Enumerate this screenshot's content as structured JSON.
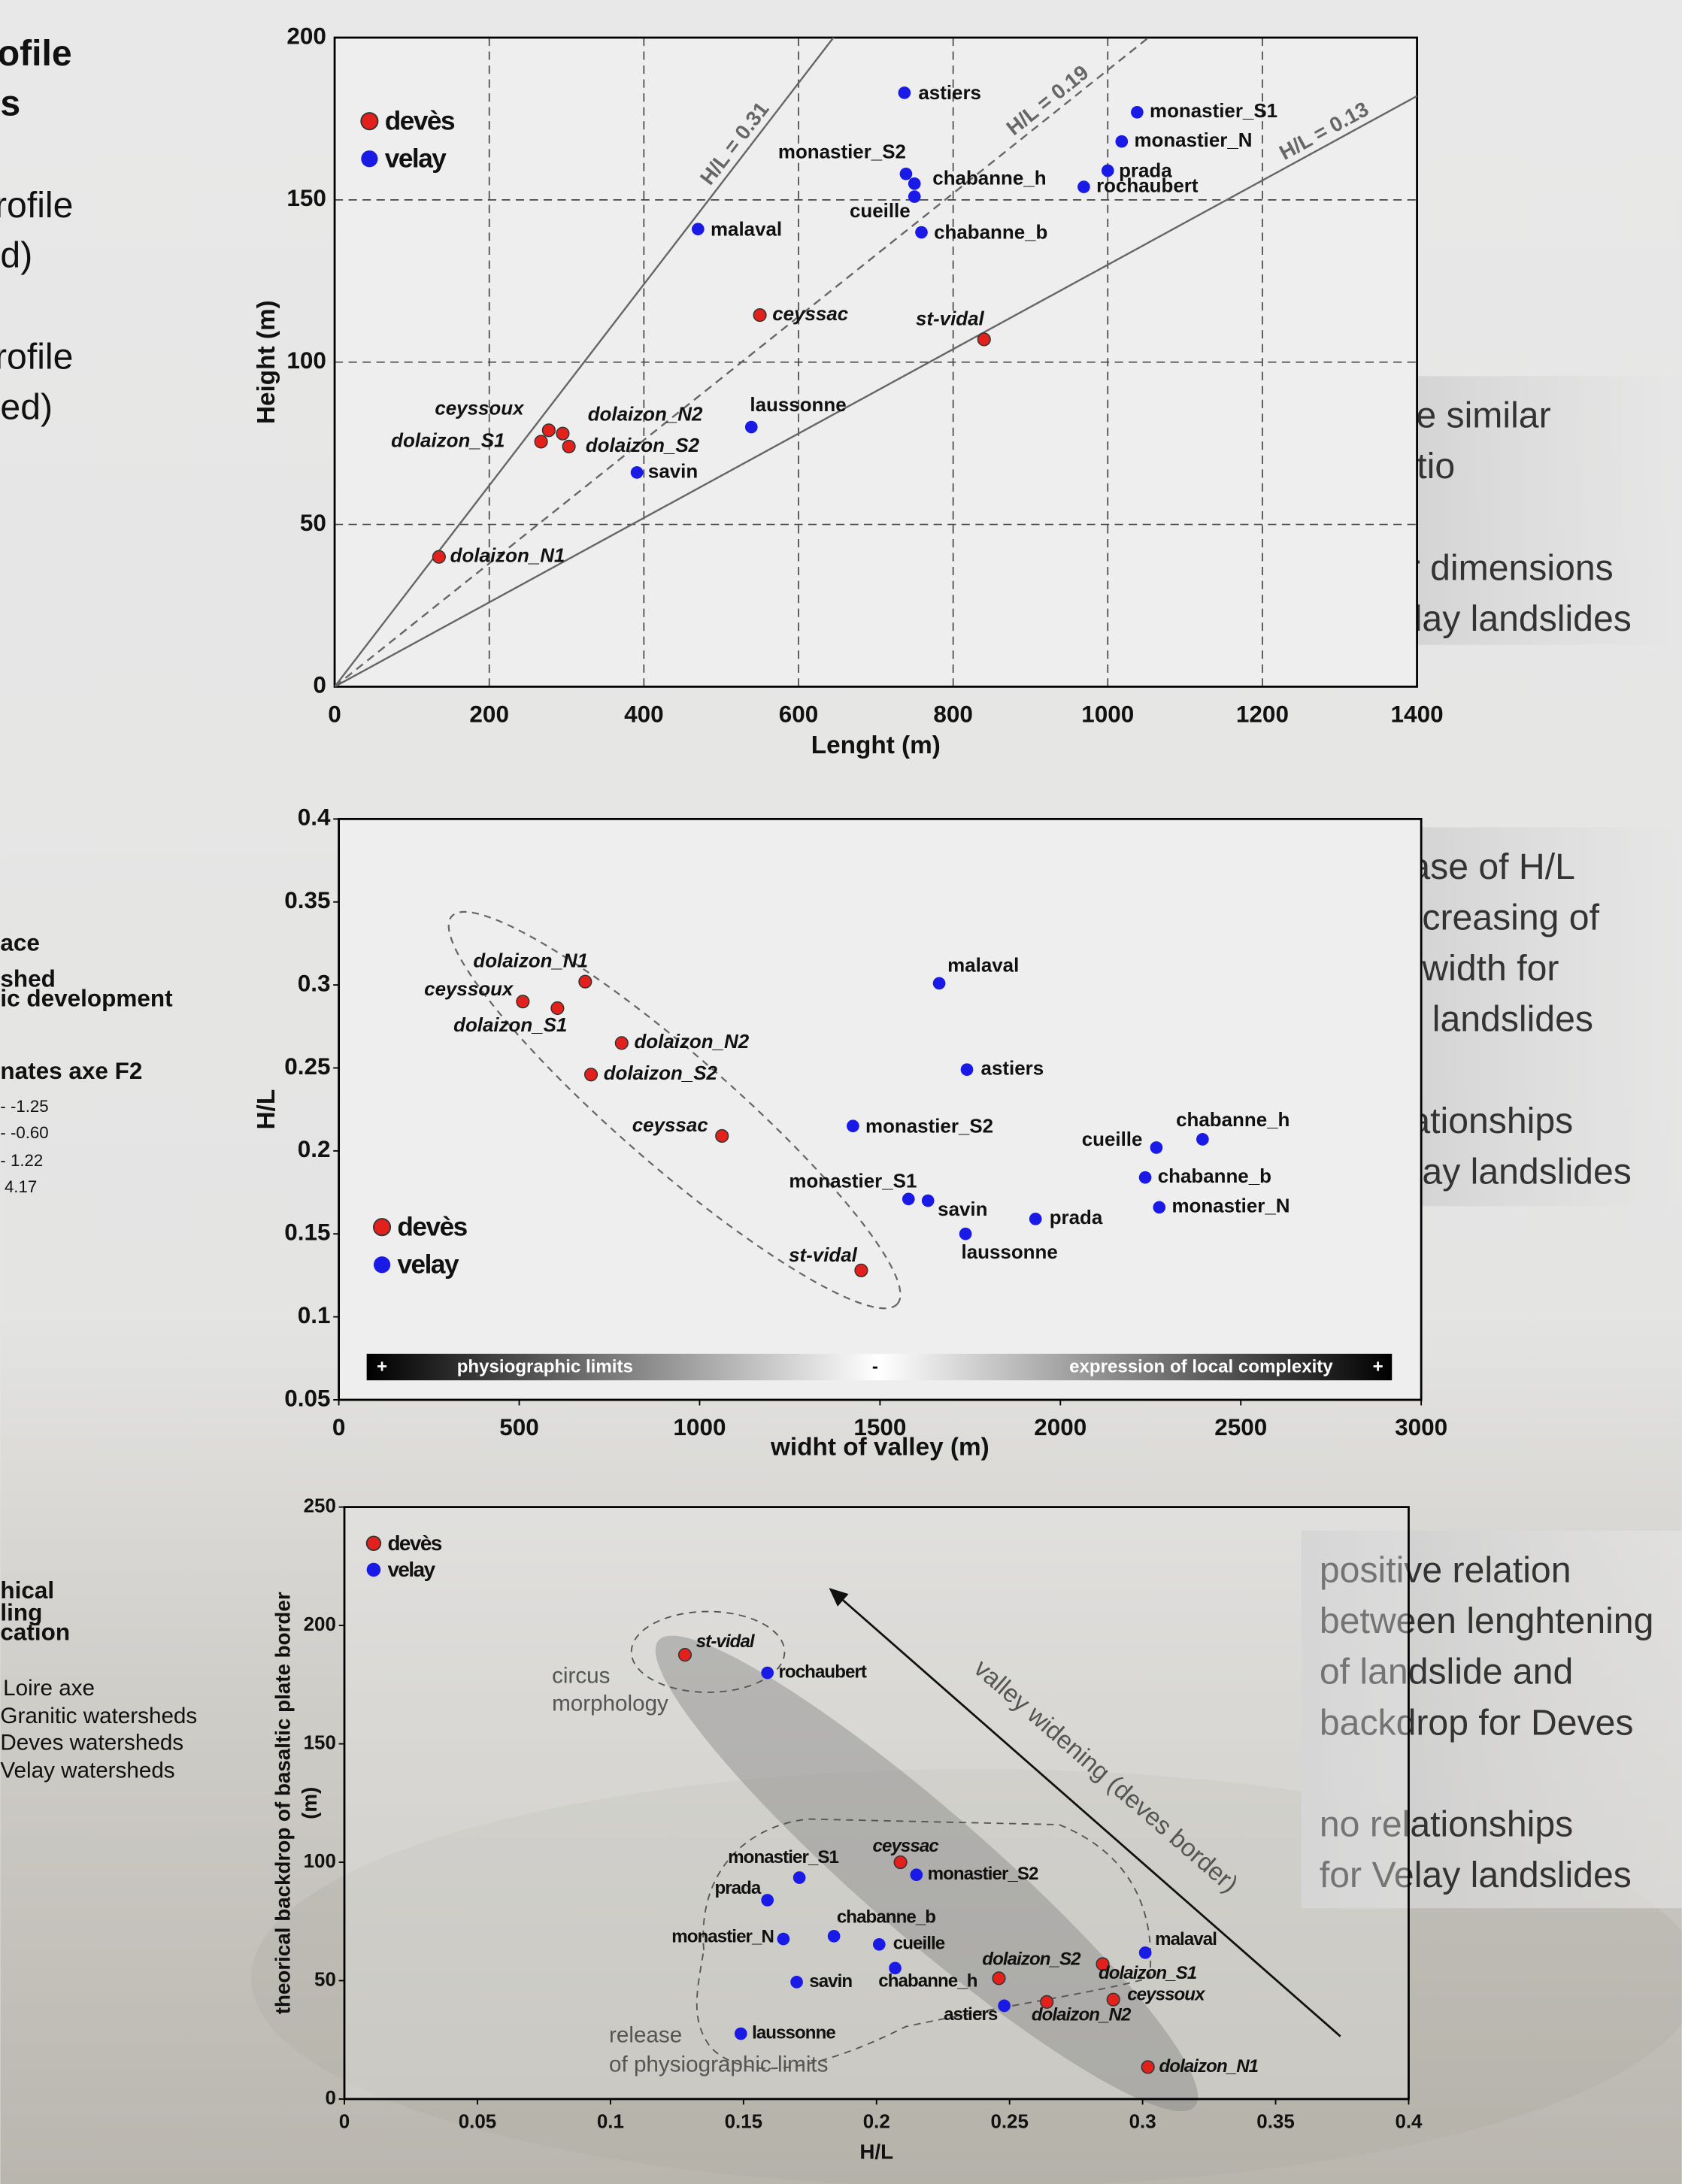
{
  "side_text": [
    "ofile",
    "s",
    "rofile",
    "d)",
    "rofile",
    "ed)",
    "ace",
    "shed",
    "ic development",
    "nates axe F2",
    "- -1.25",
    "- -0.60",
    "- 1.22",
    "4.17",
    "hical",
    "ling",
    "cation",
    "Loire axe",
    "Granitic watersheds",
    "Deves watersheds",
    "Velay watersheds"
  ],
  "notes": [
    [
      [
        "relative similar",
        "H/L ratio"
      ],
      [
        "higher dimensions",
        "for Velay landslides"
      ]
    ],
    [
      [
        "decrease of H/L",
        "with increasing of",
        "valley width for",
        "Deves landslides"
      ],
      [
        "no relationships",
        "for Velay landslides"
      ]
    ],
    [
      [
        "positive relation",
        "between lenghtening",
        "of landslide and",
        "backdrop for Deves"
      ],
      [
        "no relationships",
        "for Velay landslides"
      ]
    ]
  ],
  "chart_data": [
    {
      "type": "scatter",
      "xlabel": "Lenght (m)",
      "ylabel": "Height (m)",
      "xlim": [
        0,
        1400
      ],
      "ylim": [
        0,
        200
      ],
      "xticks": [
        0,
        200,
        400,
        600,
        800,
        1000,
        1200,
        1400
      ],
      "yticks": [
        0,
        50,
        100,
        150,
        200
      ],
      "grid": true,
      "legend": "upper left",
      "ratio_lines": [
        {
          "label": "H/L = 0.31",
          "value": 0.31,
          "dashed": false
        },
        {
          "label": "H/L = 0.19",
          "value": 0.19,
          "dashed": true
        },
        {
          "label": "H/L = 0.13",
          "value": 0.13,
          "dashed": false
        }
      ],
      "series": [
        {
          "name": "devès",
          "color": "#e3211c",
          "labels": [
            "dolaizon_N1",
            "dolaizon_S1",
            "ceyssoux",
            "dolaizon_N2",
            "dolaizon_S2",
            "ceyssac",
            "st-vidal"
          ],
          "x": [
            135,
            267,
            277,
            295,
            303,
            550,
            840
          ],
          "values": [
            40,
            75.5,
            79,
            78,
            74,
            114.5,
            107
          ]
        },
        {
          "name": "velay",
          "color": "#1a1ae6",
          "labels": [
            "astiers",
            "monastier_S1",
            "monastier_N",
            "monastier_S2",
            "chabanne_h",
            "cueille",
            "prada",
            "rochaubert",
            "chabanne_b",
            "malaval",
            "laussonne",
            "savin"
          ],
          "x": [
            737,
            1038,
            1018,
            739,
            750,
            750,
            1000,
            969,
            759,
            470,
            539,
            391
          ],
          "values": [
            183,
            177,
            168,
            158,
            155,
            151,
            159,
            154,
            140,
            141,
            80,
            66
          ]
        }
      ]
    },
    {
      "type": "scatter",
      "xlabel": "widht of valley (m)",
      "ylabel": "H/L",
      "xlim": [
        0,
        3000
      ],
      "ylim": [
        0.05,
        0.4
      ],
      "xticks": [
        0,
        500,
        1000,
        1500,
        2000,
        2500,
        3000
      ],
      "yticks": [
        0.05,
        0.1,
        0.15,
        0.2,
        0.25,
        0.3,
        0.35,
        0.4
      ],
      "grid": false,
      "legend": "lower left",
      "gradient_bar": [
        "+",
        "physiographic limits",
        "-",
        "expression of local complexity",
        "+"
      ],
      "series": [
        {
          "name": "devès",
          "color": "#e3211c",
          "labels": [
            "dolaizon_N1",
            "dolaizon_S1",
            "ceyssoux",
            "dolaizon_N2",
            "dolaizon_S2",
            "ceyssac",
            "st-vidal"
          ],
          "x": [
            683,
            606,
            510,
            784,
            699,
            1062,
            1448
          ],
          "values": [
            0.302,
            0.286,
            0.29,
            0.265,
            0.246,
            0.209,
            0.128
          ]
        },
        {
          "name": "velay",
          "color": "#1a1ae6",
          "labels": [
            "astiers",
            "monastier_S1",
            "monastier_N",
            "monastier_S2",
            "chabanne_h",
            "cueille",
            "prada",
            "chabanne_b",
            "malaval",
            "laussonne",
            "savin"
          ],
          "x": [
            1741,
            1579,
            2274,
            1425,
            2394,
            2266,
            1931,
            2235,
            1664,
            1737,
            1633
          ],
          "values": [
            0.249,
            0.171,
            0.166,
            0.215,
            0.207,
            0.202,
            0.159,
            0.184,
            0.301,
            0.15,
            0.17
          ]
        }
      ]
    },
    {
      "type": "scatter",
      "xlabel": "H/L",
      "ylabel": [
        "theorical backdrop of basaltic plate border",
        "(m)"
      ],
      "xlim": [
        0,
        0.4
      ],
      "ylim": [
        0,
        250
      ],
      "xticks": [
        0,
        0.05,
        0.1,
        0.15,
        0.2,
        0.25,
        0.3,
        0.35,
        0.4
      ],
      "yticks": [
        0,
        50,
        100,
        150,
        200,
        250
      ],
      "grid": false,
      "legend": "upper left",
      "annotations": [
        "circus",
        "morphology",
        "release",
        "of physiographic limits",
        "valley widening (deves border)"
      ],
      "series": [
        {
          "name": "devès",
          "color": "#e3211c",
          "labels": [
            "dolaizon_N1",
            "dolaizon_S1",
            "ceyssoux",
            "dolaizon_N2",
            "dolaizon_S2",
            "ceyssac",
            "st-vidal"
          ],
          "x": [
            0.302,
            0.285,
            0.289,
            0.264,
            0.246,
            0.209,
            0.128
          ],
          "values": [
            13.5,
            57,
            42,
            41,
            51,
            100,
            187.6
          ]
        },
        {
          "name": "velay",
          "color": "#1a1ae6",
          "labels": [
            "astiers",
            "monastier_S1",
            "monastier_N",
            "monastier_S2",
            "chabanne_h",
            "cueille",
            "prada",
            "rochaubert",
            "chabanne_b",
            "malaval",
            "laussonne",
            "savin"
          ],
          "x": [
            0.248,
            0.171,
            0.165,
            0.215,
            0.207,
            0.201,
            0.159,
            0.159,
            0.184,
            0.301,
            0.149,
            0.17
          ],
          "values": [
            39.4,
            93.5,
            67.6,
            94.7,
            55.3,
            65.3,
            84,
            180,
            68.8,
            61.8,
            27.6,
            49.4
          ]
        }
      ]
    }
  ]
}
